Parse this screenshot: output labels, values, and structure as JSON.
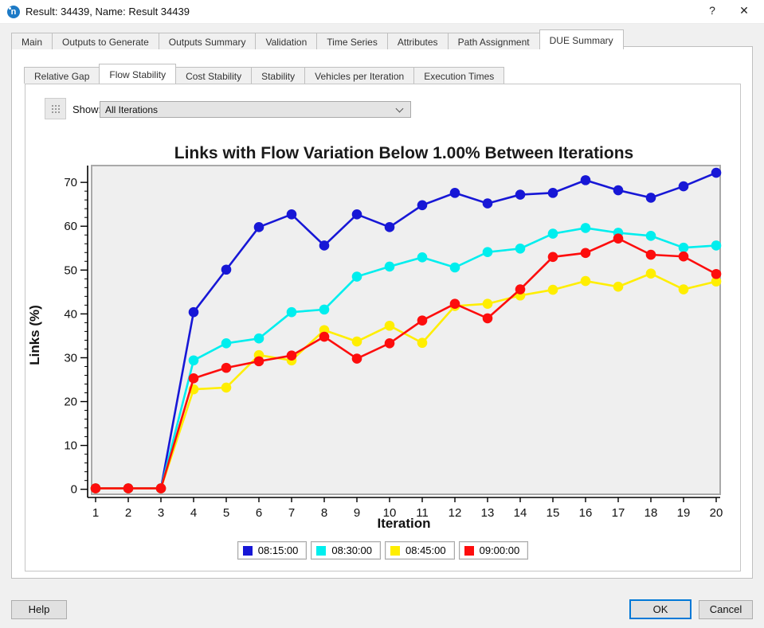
{
  "window": {
    "title": "Result: 34439, Name: Result 34439",
    "app_icon_letter": "n",
    "help_glyph": "?",
    "close_glyph": "✕"
  },
  "main_tabs": {
    "items": [
      "Main",
      "Outputs to Generate",
      "Outputs Summary",
      "Validation",
      "Time Series",
      "Attributes",
      "Path Assignment",
      "DUE Summary"
    ],
    "active": "DUE Summary"
  },
  "sub_tabs": {
    "items": [
      "Relative Gap",
      "Flow Stability",
      "Cost Stability",
      "Stability",
      "Vehicles per Iteration",
      "Execution Times"
    ],
    "active": "Flow Stability"
  },
  "toolbar": {
    "show_label": "Show:",
    "show_value": "All Iterations"
  },
  "chart_data": {
    "type": "line",
    "title": "Links with Flow Variation Below 1.00% Between Iterations",
    "xlabel": "Iteration",
    "ylabel": "Links (%)",
    "x": [
      1,
      2,
      3,
      4,
      5,
      6,
      7,
      8,
      9,
      10,
      11,
      12,
      13,
      14,
      15,
      16,
      17,
      18,
      19,
      20
    ],
    "x_ticks": [
      1,
      2,
      3,
      4,
      5,
      6,
      7,
      8,
      9,
      10,
      11,
      12,
      13,
      14,
      15,
      16,
      17,
      18,
      19,
      20
    ],
    "y_ticks": [
      0,
      10,
      20,
      30,
      40,
      50,
      60,
      70
    ],
    "y_minor_interval": 2,
    "ylim": [
      0,
      73.8
    ],
    "grid": false,
    "legend_position": "bottom",
    "plot_bg": "#efefef",
    "frame_color": "#a9a9a9",
    "series": [
      {
        "name": "08:15:00",
        "color": "#1717d6",
        "values": [
          0.2,
          0.2,
          0.2,
          40.4,
          50.1,
          59.8,
          62.7,
          55.6,
          62.7,
          59.8,
          64.8,
          67.6,
          65.2,
          67.2,
          67.6,
          70.5,
          68.2,
          66.5,
          69.1,
          72.2
        ]
      },
      {
        "name": "08:30:00",
        "color": "#00eeee",
        "values": [
          0.2,
          0.2,
          0.2,
          29.4,
          33.3,
          34.4,
          40.4,
          41.0,
          48.5,
          50.8,
          52.9,
          50.6,
          54.1,
          54.9,
          58.3,
          59.6,
          58.5,
          57.8,
          55.1,
          55.6
        ]
      },
      {
        "name": "08:45:00",
        "color": "#ffee00",
        "values": [
          0.2,
          0.2,
          0.2,
          22.8,
          23.2,
          30.6,
          29.4,
          36.3,
          33.7,
          37.3,
          33.4,
          41.8,
          42.3,
          44.2,
          45.5,
          47.5,
          46.2,
          49.2,
          45.6,
          47.4
        ]
      },
      {
        "name": "09:00:00",
        "color": "#fd0d0d",
        "values": [
          0.2,
          0.2,
          0.2,
          25.3,
          27.7,
          29.2,
          30.5,
          34.8,
          29.8,
          33.3,
          38.5,
          42.3,
          39.0,
          45.6,
          53.0,
          53.9,
          57.2,
          53.5,
          53.1,
          49.1
        ]
      }
    ]
  },
  "footer": {
    "help_label": "Help",
    "ok_label": "OK",
    "cancel_label": "Cancel"
  }
}
